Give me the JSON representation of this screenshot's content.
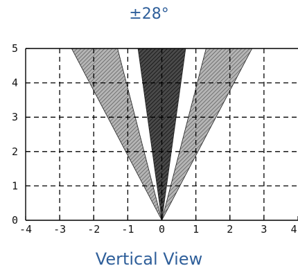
{
  "title": "±28°",
  "caption": "Vertical View",
  "chart_data": {
    "type": "area",
    "xlim": [
      -4,
      4
    ],
    "ylim": [
      0,
      5
    ],
    "x_ticks": [
      "-4",
      "-3",
      "-2",
      "-1",
      "0",
      "1",
      "2",
      "3",
      "4"
    ],
    "y_ticks": [
      "0",
      "1",
      "2",
      "3",
      "4",
      "5"
    ],
    "grid": true,
    "series": [
      {
        "kind": "left-wedge",
        "polygon": [
          [
            0,
            0
          ],
          [
            -2.65,
            5
          ],
          [
            -1.3,
            5
          ]
        ],
        "fill": "#9a9a9a"
      },
      {
        "kind": "center-wedge",
        "polygon": [
          [
            0,
            0
          ],
          [
            -0.7,
            5
          ],
          [
            0.7,
            5
          ]
        ],
        "fill": "#3a3a3a"
      },
      {
        "kind": "right-wedge",
        "polygon": [
          [
            0,
            0
          ],
          [
            1.3,
            5
          ],
          [
            2.65,
            5
          ]
        ],
        "fill": "#9a9a9a"
      }
    ]
  }
}
